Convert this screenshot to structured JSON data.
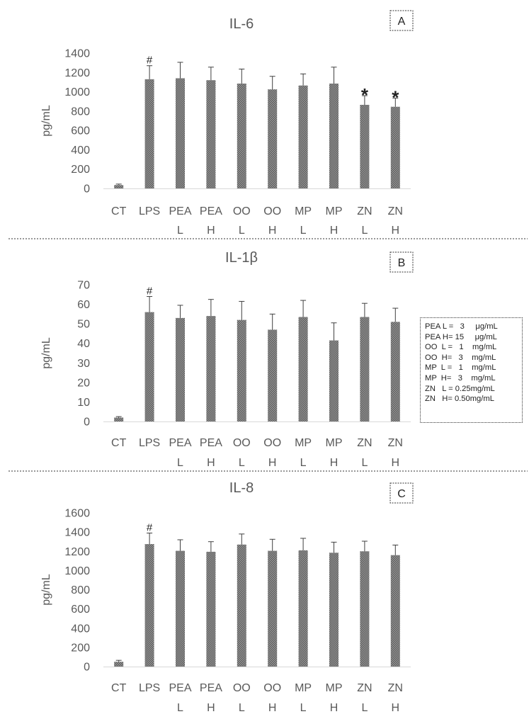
{
  "chart_data": [
    {
      "type": "bar",
      "title": "IL-6",
      "panel_label": "A",
      "ylabel": "pg/mL",
      "ylim": [
        0,
        1400
      ],
      "yticks": [
        0,
        200,
        400,
        600,
        800,
        1000,
        1200,
        1400
      ],
      "categories": [
        "CT",
        "LPS",
        "PEA L",
        "PEA H",
        "OO L",
        "OO H",
        "MP L",
        "MP H",
        "ZN L",
        "ZN H"
      ],
      "category_lines": [
        [
          "CT"
        ],
        [
          "LPS"
        ],
        [
          "PEA",
          "L"
        ],
        [
          "PEA",
          "H"
        ],
        [
          "OO",
          "L"
        ],
        [
          "OO",
          "H"
        ],
        [
          "MP",
          "L"
        ],
        [
          "MP",
          "H"
        ],
        [
          "ZN",
          "L"
        ],
        [
          "ZN",
          "H"
        ]
      ],
      "values": [
        35,
        1130,
        1140,
        1120,
        1085,
        1025,
        1065,
        1085,
        865,
        845
      ],
      "errors": [
        10,
        140,
        165,
        135,
        150,
        135,
        120,
        170,
        95,
        90
      ],
      "annotations": [
        "",
        "#",
        "",
        "",
        "",
        "",
        "",
        "",
        "*",
        "*"
      ]
    },
    {
      "type": "bar",
      "title": "IL-1β",
      "panel_label": "B",
      "ylabel": "pg/mL",
      "ylim": [
        0,
        70
      ],
      "yticks": [
        0,
        10,
        20,
        30,
        40,
        50,
        60,
        70
      ],
      "categories": [
        "CT",
        "LPS",
        "PEA L",
        "PEA H",
        "OO L",
        "OO H",
        "MP L",
        "MP H",
        "ZN L",
        "ZN H"
      ],
      "category_lines": [
        [
          "CT"
        ],
        [
          "LPS"
        ],
        [
          "PEA",
          "L"
        ],
        [
          "PEA",
          "H"
        ],
        [
          "OO",
          "L"
        ],
        [
          "OO",
          "H"
        ],
        [
          "MP",
          "L"
        ],
        [
          "MP",
          "H"
        ],
        [
          "ZN",
          "L"
        ],
        [
          "ZN",
          "H"
        ]
      ],
      "values": [
        2,
        56,
        53,
        54,
        52,
        47,
        53.5,
        41.5,
        53.5,
        51
      ],
      "errors": [
        0.5,
        8,
        6.5,
        8.5,
        9.5,
        8,
        8.5,
        9,
        7,
        7
      ],
      "annotations": [
        "",
        "#",
        "",
        "",
        "",
        "",
        "",
        "",
        "",
        ""
      ]
    },
    {
      "type": "bar",
      "title": "IL-8",
      "panel_label": "C",
      "ylabel": "pg/mL",
      "ylim": [
        0,
        1600
      ],
      "yticks": [
        0,
        200,
        400,
        600,
        800,
        1000,
        1200,
        1400,
        1600
      ],
      "categories": [
        "CT",
        "LPS",
        "PEA L",
        "PEA H",
        "OO L",
        "OO H",
        "MP L",
        "MP H",
        "ZN L",
        "ZN H"
      ],
      "category_lines": [
        [
          "CT"
        ],
        [
          "LPS"
        ],
        [
          "PEA",
          "L"
        ],
        [
          "PEA",
          "H"
        ],
        [
          "OO",
          "L"
        ],
        [
          "OO",
          "H"
        ],
        [
          "MP",
          "L"
        ],
        [
          "MP",
          "H"
        ],
        [
          "ZN",
          "L"
        ],
        [
          "ZN",
          "H"
        ]
      ],
      "values": [
        50,
        1275,
        1205,
        1195,
        1270,
        1205,
        1210,
        1185,
        1200,
        1160
      ],
      "errors": [
        15,
        115,
        115,
        105,
        110,
        120,
        125,
        110,
        105,
        105
      ],
      "annotations": [
        "",
        "#",
        "",
        "",
        "",
        "",
        "",
        "",
        "",
        ""
      ]
    }
  ],
  "legend": {
    "items": [
      "PEA L =   3     μg/mL",
      "PEA H= 15     μg/mL",
      "OO  L =   1    mg/mL",
      "OO  H=   3    mg/mL",
      "MP  L =   1    mg/mL",
      "MP  H=   3    mg/mL",
      "ZN   L = 0.25mg/mL",
      "ZN   H= 0.50mg/mL"
    ]
  },
  "colors": {
    "bar": "#7a7a7a",
    "error_bar": "#404040",
    "axis_text": "#595959",
    "gridline": "#d9d9d9",
    "separator": "#333333"
  }
}
